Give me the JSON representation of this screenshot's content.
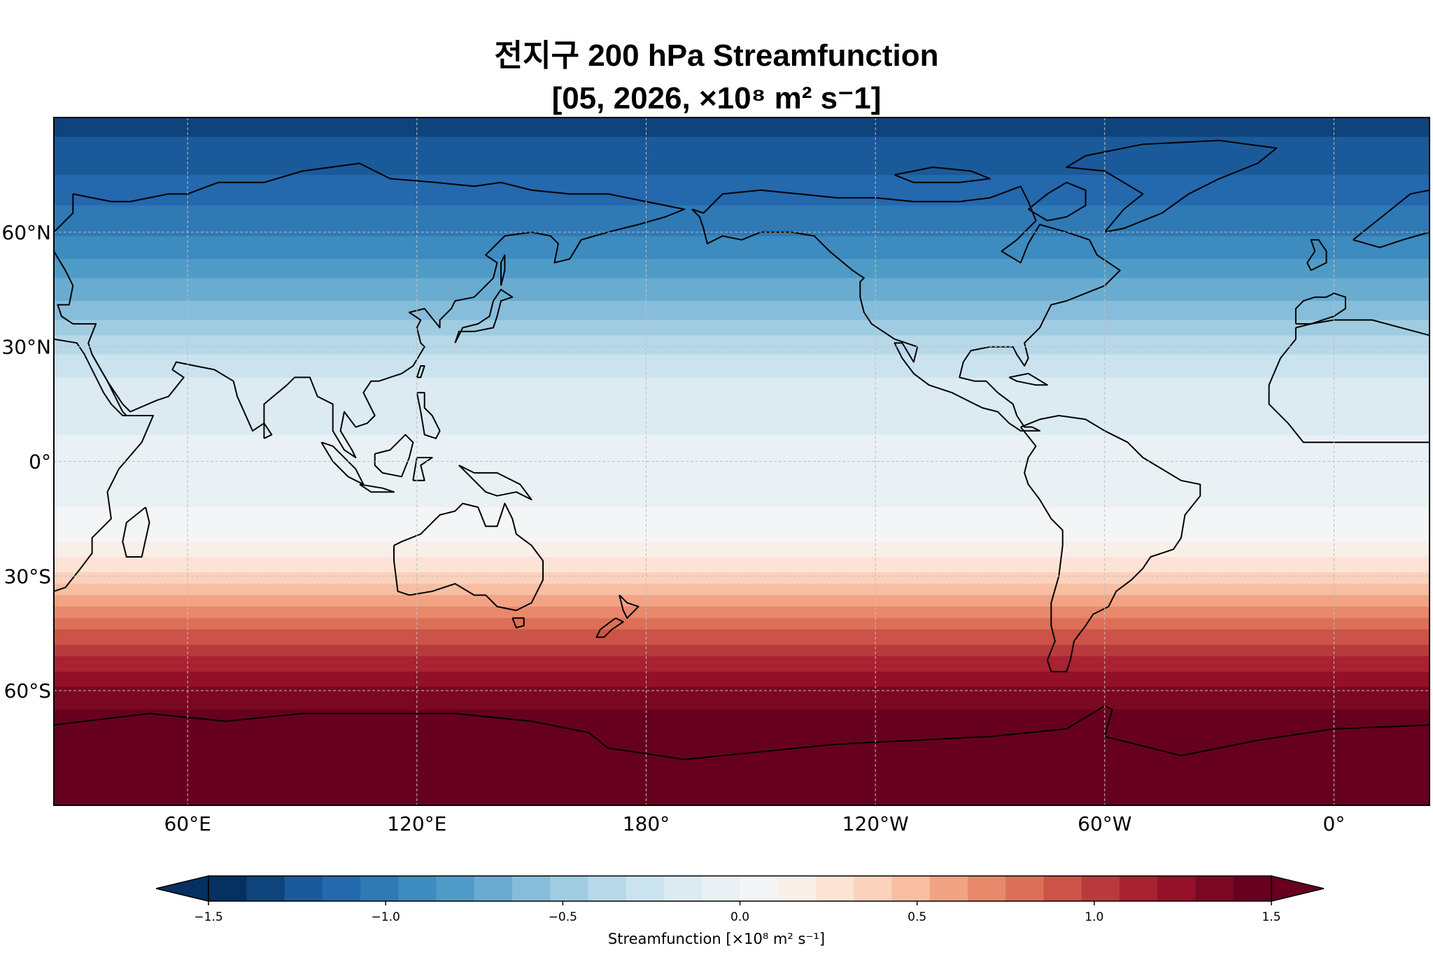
{
  "title": {
    "line1": "전지구 200 hPa Streamfunction",
    "line2": "[05, 2026, ×10⁸ m² s⁻1]"
  },
  "map": {
    "projection": "PlateCarree",
    "central_longitude": 180,
    "extent_lon": [
      25,
      385
    ],
    "extent_lat": [
      -90,
      90
    ],
    "lat_ticks": [
      {
        "value": 60,
        "label": "60°N"
      },
      {
        "value": 30,
        "label": "30°N"
      },
      {
        "value": 0,
        "label": "0°"
      },
      {
        "value": -30,
        "label": "30°S"
      },
      {
        "value": -60,
        "label": "60°S"
      }
    ],
    "lon_ticks": [
      {
        "value": 60,
        "label": "60°E"
      },
      {
        "value": 120,
        "label": "120°E"
      },
      {
        "value": 180,
        "label": "180°"
      },
      {
        "value": 240,
        "label": "120°W"
      },
      {
        "value": 300,
        "label": "60°W"
      },
      {
        "value": 360,
        "label": "0°"
      }
    ],
    "gridlines": true,
    "coastlines": true
  },
  "field": {
    "variable": "Streamfunction",
    "units": "×10⁸ m² s⁻¹",
    "zonal_profile": [
      {
        "lat": 90,
        "value": -1.32
      },
      {
        "lat": 80,
        "value": -1.25
      },
      {
        "lat": 70,
        "value": -1.12
      },
      {
        "lat": 60,
        "value": -0.98
      },
      {
        "lat": 50,
        "value": -0.8
      },
      {
        "lat": 40,
        "value": -0.6
      },
      {
        "lat": 30,
        "value": -0.35
      },
      {
        "lat": 20,
        "value": -0.18
      },
      {
        "lat": 10,
        "value": -0.12
      },
      {
        "lat": 0,
        "value": -0.08
      },
      {
        "lat": -10,
        "value": -0.02
      },
      {
        "lat": -20,
        "value": 0.08
      },
      {
        "lat": -30,
        "value": 0.35
      },
      {
        "lat": -40,
        "value": 0.7
      },
      {
        "lat": -50,
        "value": 1.05
      },
      {
        "lat": -60,
        "value": 1.32
      },
      {
        "lat": -70,
        "value": 1.48
      },
      {
        "lat": -80,
        "value": 1.55
      },
      {
        "lat": -90,
        "value": 1.6
      }
    ]
  },
  "colorbar": {
    "label": "Streamfunction [×10⁸ m² s⁻¹]",
    "vmin": -1.5,
    "vmax": 1.5,
    "step": 0.1,
    "extend": "both",
    "ticks": [
      {
        "value": -1.5,
        "label": "−1.5"
      },
      {
        "value": -1.0,
        "label": "−1.0"
      },
      {
        "value": -0.5,
        "label": "−0.5"
      },
      {
        "value": 0.0,
        "label": "0.0"
      },
      {
        "value": 0.5,
        "label": "0.5"
      },
      {
        "value": 1.0,
        "label": "1.0"
      },
      {
        "value": 1.5,
        "label": "1.5"
      }
    ],
    "colors": [
      "#053061",
      "#0f437b",
      "#1b5a9a",
      "#2468ad",
      "#2f79b5",
      "#3d8bbf",
      "#4f9bc7",
      "#6aacd0",
      "#86bdda",
      "#a0cce2",
      "#b7d8e9",
      "#cbe3ef",
      "#dceaf2",
      "#eaf1f4",
      "#f4f5f6",
      "#f9efe9",
      "#fce3d6",
      "#fbd2bc",
      "#f7bea2",
      "#f2a384",
      "#e8896b",
      "#dc6f58",
      "#cc5347",
      "#b93a3c",
      "#a82232",
      "#931028",
      "#7a0823",
      "#67001f"
    ],
    "under_color": "#053061",
    "over_color": "#67001f"
  }
}
